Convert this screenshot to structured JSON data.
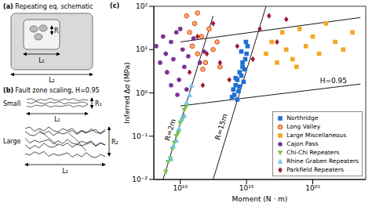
{
  "panels": {
    "a": {
      "label": "(a)",
      "title": "Repeating eq. schematic",
      "R": "R",
      "L1": "L₁",
      "L2": "L₂"
    },
    "b": {
      "label": "(b)",
      "title": "Fault zone scaling, H=0.95",
      "small": "Small",
      "large": "Large",
      "R1": "R₁",
      "L1": "L₁",
      "R2": "R₂",
      "L2": "L₂"
    }
  },
  "chart_data": {
    "panel_label": "(c)",
    "type": "scatter",
    "x_label": "Moment (N · m)",
    "y_label": "Inferred Δσ (MPa)",
    "log": true,
    "xlim": [
      100000000.0,
      1e+24
    ],
    "ylim": [
      0.01,
      100
    ],
    "xticks": [
      {
        "value": 10000000000.0,
        "label": "10¹⁰"
      },
      {
        "value": 1000000000000000.0,
        "label": "10¹⁵"
      },
      {
        "value": 1e+20,
        "label": "10²⁰"
      }
    ],
    "yticks": [
      {
        "value": 0.01,
        "label": "10⁻²"
      },
      {
        "value": 0.1,
        "label": "10⁻¹"
      },
      {
        "value": 1,
        "label": "10⁰"
      },
      {
        "value": 10,
        "label": "10¹"
      },
      {
        "value": 100,
        "label": "10²"
      }
    ],
    "legend": "lower right",
    "series": [
      {
        "type": "line",
        "color": "#000000",
        "x": [
          10000000000.0,
          4e+23
        ],
        "y": [
          15,
          55
        ]
      },
      {
        "type": "line",
        "label": "H=0.95",
        "color": "#000000",
        "x": [
          10000000000.0,
          4e+23
        ],
        "y": [
          0.5,
          1.6
        ]
      },
      {
        "type": "line",
        "label": "R=2m",
        "color": "#000000",
        "x": [
          500000000.0,
          3000000000000.0
        ],
        "y": [
          0.01,
          60
        ]
      },
      {
        "type": "line",
        "label": "R=15m",
        "color": "#000000",
        "x": [
          3000000000000.0,
          3e+16
        ],
        "y": [
          0.01,
          100
        ]
      },
      {
        "type": "scatter",
        "name": "Northridge",
        "color": "#1f6fd1",
        "marker": "square",
        "x": [
          80000000000000.0,
          100000000000000.0,
          120000000000000.0,
          150000000000000.0,
          200000000000000.0,
          250000000000000.0,
          300000000000000.0,
          400000000000000.0,
          500000000000000.0,
          600000000000000.0,
          800000000000000.0,
          1000000000000000.0,
          1200000000000000.0,
          200000000000000.0,
          300000000000000.0,
          500000000000000.0,
          700000000000000.0,
          150000000000000.0,
          400000000000000.0,
          900000000000000.0
        ],
        "y": [
          0.8,
          1.2,
          0.9,
          1.5,
          2,
          1.1,
          3,
          2.5,
          4,
          1.8,
          6,
          8,
          12,
          0.7,
          1.4,
          5,
          3.5,
          2.2,
          9,
          15
        ]
      },
      {
        "type": "scatter",
        "name": "Long Valley",
        "color": "#e0401f",
        "marker": "open_circle",
        "x": [
          30000000000.0,
          50000000000.0,
          80000000000.0,
          120000000000.0,
          200000000000.0,
          400000000000.0,
          800000000000.0,
          1500000000000.0,
          3000000000000.0,
          6000000000000.0,
          10000000000000.0,
          200000000000.0,
          500000000000.0
        ],
        "y": [
          60,
          25,
          12,
          40,
          8,
          20,
          5,
          30,
          10,
          15,
          4,
          70,
          3.5
        ]
      },
      {
        "type": "scatter",
        "name": "Large Miscellaneous",
        "color": "#f5a623",
        "marker": "square",
        "x": [
          3e+16,
          8e+16,
          2e+17,
          5e+17,
          1e+18,
          3e+18,
          1e+19,
          3e+19,
          1e+20,
          3e+20,
          1e+21,
          5e+21,
          2e+22,
          1e+23,
          6e+18
        ],
        "y": [
          8,
          15,
          5,
          25,
          10,
          6,
          30,
          12,
          20,
          8,
          40,
          15,
          10,
          25,
          4
        ]
      },
      {
        "type": "scatter",
        "name": "Cajon Pass",
        "color": "#7b3294",
        "marker": "circle",
        "x": [
          150000000.0,
          300000000.0,
          500000000.0,
          800000000.0,
          1000000000.0,
          2000000000.0,
          3000000000.0,
          5000000000.0,
          8000000000.0,
          15000000000.0,
          20000000000.0,
          40000000000.0,
          100000000000.0,
          300000000000.0,
          600000000000.0,
          2000000000.0,
          6000000000.0,
          10000000000.0,
          30000000000.0
        ],
        "y": [
          12,
          5,
          20,
          8,
          3,
          15,
          6,
          25,
          2,
          10,
          4,
          7,
          18,
          5,
          9,
          1.5,
          0.9,
          30,
          1.2
        ]
      },
      {
        "type": "scatter",
        "name": "Chi-Chi Repeaters",
        "color": "#7dc242",
        "marker": "triangle_down",
        "x": [
          800000000.0,
          1200000000.0,
          1800000000.0,
          2500000000.0,
          3500000000.0,
          5000000000.0,
          7000000000.0,
          10000000000.0,
          15000000000.0,
          20000000000.0,
          30000000000.0
        ],
        "y": [
          0.015,
          0.025,
          0.03,
          0.05,
          0.07,
          0.1,
          0.12,
          0.2,
          0.25,
          0.4,
          0.5
        ]
      },
      {
        "type": "scatter",
        "name": "Rhine Graben Repeaters",
        "color": "#6cc4e8",
        "marker": "triangle_up",
        "x": [
          2000000000.0,
          3000000000.0,
          5000000000.0,
          8000000000.0,
          12000000000.0,
          20000000000.0,
          30000000000.0,
          50000000000.0,
          70000000000.0
        ],
        "y": [
          0.03,
          0.06,
          0.08,
          0.15,
          0.25,
          0.3,
          0.6,
          0.9,
          1.5
        ]
      },
      {
        "type": "scatter",
        "name": "Parkfield Repeaters",
        "color": "#9e1b32",
        "marker": "diamond",
        "x": [
          50000000000.0,
          200000000000.0,
          500000000000.0,
          1000000000000.0,
          3000000000000.0,
          10000000000000.0,
          50000000000000.0,
          200000000000000.0,
          1e+16,
          5e+16,
          2e+17,
          1e+18,
          3000000000000000.0
        ],
        "y": [
          3,
          20,
          1.5,
          8,
          40,
          5,
          2,
          12,
          30,
          60,
          15,
          50,
          6
        ]
      }
    ]
  }
}
